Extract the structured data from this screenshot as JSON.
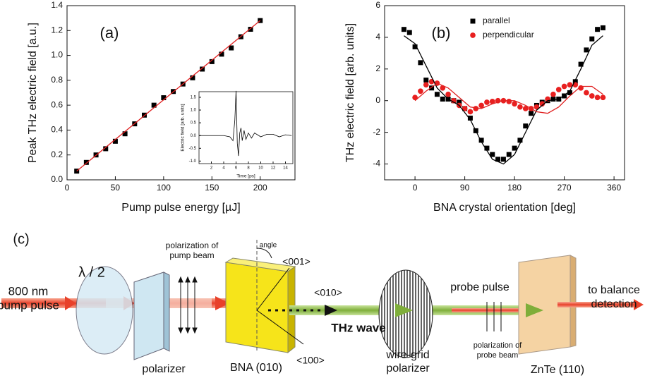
{
  "chart_data": [
    {
      "type": "scatter",
      "annotation": "(a)",
      "xlabel": "Pump pulse energy [µJ]",
      "ylabel": "Peak THz electric field [a.u.]",
      "xlim": [
        0,
        236
      ],
      "xticks": [
        0,
        50,
        100,
        150,
        200
      ],
      "ylim": [
        0,
        1.4
      ],
      "yticks": [
        {
          "value": 0,
          "label": "0.0"
        },
        0.2,
        0.4,
        0.6,
        0.8,
        {
          "value": 1,
          "label": "1.0"
        },
        1.2,
        1.4
      ],
      "series": [
        {
          "style": "markers",
          "marker": "square",
          "color": "#000000",
          "x": [
            10,
            20,
            30,
            40,
            50,
            60,
            70,
            80,
            90,
            100,
            110,
            120,
            130,
            140,
            150,
            160,
            170,
            180,
            190,
            200
          ],
          "values": [
            0.07,
            0.14,
            0.2,
            0.25,
            0.31,
            0.37,
            0.45,
            0.52,
            0.6,
            0.66,
            0.71,
            0.77,
            0.82,
            0.89,
            0.95,
            1.01,
            1.06,
            1.15,
            1.21,
            1.28
          ]
        },
        {
          "style": "line",
          "color": "#e02020",
          "x": [
            10,
            200
          ],
          "values": [
            0.07,
            1.28
          ]
        }
      ]
    },
    {
      "type": "scatter",
      "annotation": "(b)",
      "xlabel": "BNA crystal orientation [deg]",
      "ylabel": "THz electric field [arb. units]",
      "xlim": [
        -55,
        379
      ],
      "xticks": [
        0,
        90,
        180,
        270,
        360
      ],
      "ylim": [
        -5,
        6
      ],
      "yticks": [
        -4,
        -2,
        0,
        2,
        4,
        6
      ],
      "legend": "upper center",
      "series": [
        {
          "name": "parallel",
          "style": "markers",
          "marker": "square",
          "color": "#000000",
          "x": [
            -20,
            -10,
            0,
            10,
            20,
            30,
            40,
            50,
            60,
            70,
            80,
            90,
            100,
            110,
            120,
            130,
            140,
            150,
            160,
            170,
            180,
            190,
            200,
            210,
            220,
            230,
            240,
            250,
            260,
            270,
            280,
            290,
            300,
            310,
            320,
            330,
            340
          ],
          "values": [
            4.5,
            4.3,
            3.4,
            2.4,
            1.3,
            0.8,
            0.4,
            0.1,
            0.1,
            0,
            -0.1,
            -0.5,
            -1.1,
            -1.9,
            -2.5,
            -3,
            -3.4,
            -3.7,
            -3.7,
            -3.4,
            -3,
            -2.5,
            -1.6,
            -0.8,
            -0.3,
            -0.1,
            0,
            0.1,
            0.1,
            0.3,
            0.5,
            1.2,
            2.3,
            3.2,
            3.9,
            4.5,
            4.6
          ]
        },
        {
          "name": "perpendicular",
          "style": "markers",
          "marker": "circle",
          "color": "#e82020",
          "x": [
            0,
            10,
            20,
            30,
            40,
            50,
            60,
            70,
            80,
            90,
            100,
            110,
            120,
            130,
            140,
            150,
            160,
            170,
            180,
            190,
            200,
            210,
            220,
            230,
            240,
            250,
            260,
            270,
            280,
            290,
            300,
            310,
            320,
            330,
            340
          ],
          "values": [
            0.2,
            0.6,
            1,
            1.2,
            1.1,
            0.8,
            0.4,
            0,
            -0.3,
            -0.5,
            -0.7,
            -0.5,
            -0.3,
            -0.1,
            -0.05,
            0,
            0,
            -0.05,
            -0.2,
            -0.4,
            -0.5,
            -0.5,
            -0.4,
            -0.2,
            0.1,
            0.4,
            0.7,
            0.9,
            1,
            1,
            0.8,
            0.5,
            0.3,
            0.2,
            0.2
          ]
        },
        {
          "style": "line",
          "color": "#000000",
          "x": [
            -20,
            0,
            20,
            40,
            60,
            80,
            100,
            120,
            140,
            160,
            180,
            200,
            220,
            240,
            260,
            280,
            300,
            320,
            340
          ],
          "values": [
            4.1,
            3.6,
            2.2,
            0.8,
            0.1,
            -0.3,
            -1.2,
            -2.6,
            -3.7,
            -4,
            -3.4,
            -2,
            -0.6,
            0,
            0.1,
            0.6,
            2,
            3.5,
            4.1
          ]
        },
        {
          "style": "line",
          "color": "#e02020",
          "x": [
            0,
            20,
            40,
            60,
            80,
            100,
            120,
            140,
            160,
            180,
            200,
            220,
            240,
            260,
            280,
            300,
            320,
            340
          ],
          "values": [
            0,
            0.6,
            1.1,
            0.8,
            0.2,
            -0.4,
            -0.5,
            -0.2,
            0,
            0,
            -0.3,
            -0.7,
            -0.8,
            -0.4,
            0.3,
            0.9,
            0.9,
            0.4
          ]
        }
      ]
    },
    {
      "type": "line",
      "xlabel": "Time [ps]",
      "ylabel": "Electric field [arb. units]",
      "xlim": [
        0,
        15.2
      ],
      "xticks": [
        2,
        4,
        6,
        8,
        10,
        12,
        14
      ],
      "ylim": [
        -1.1,
        1.72
      ],
      "yticks": [
        {
          "value": -1,
          "label": "-1.0"
        },
        -0.5,
        {
          "value": 0,
          "label": "0.0"
        },
        0.5,
        {
          "value": 1,
          "label": "1.0"
        },
        1.5
      ],
      "series": [
        {
          "style": "line",
          "color": "#000000",
          "x": [
            0,
            2,
            4,
            5,
            5.5,
            5.8,
            6,
            6.2,
            6.4,
            6.6,
            6.8,
            7,
            7.3,
            7.6,
            8,
            8.5,
            9,
            10,
            11,
            12,
            13,
            14,
            15
          ],
          "values": [
            0,
            0,
            0,
            -0.05,
            -0.2,
            0.6,
            1.75,
            -0.3,
            -0.8,
            0.1,
            0.3,
            -0.2,
            0.2,
            -0.15,
            0.1,
            -0.1,
            0.1,
            -0.05,
            0.05,
            0.05,
            -0.05,
            0.03,
            0
          ]
        }
      ]
    }
  ],
  "diagram": {
    "labels": [
      "(c)",
      "800 nm",
      "pump pulse",
      "λ / 2",
      "polarizer",
      "polarization of",
      "pump beam",
      "angle",
      "<001>",
      "<010>",
      "<100>",
      "BNA (010)",
      "THz wave",
      "wire-grid",
      "polarizer",
      "probe pulse",
      "polarization of",
      "probe beam",
      "ZnTe (110)",
      "to balance",
      "detection"
    ]
  }
}
